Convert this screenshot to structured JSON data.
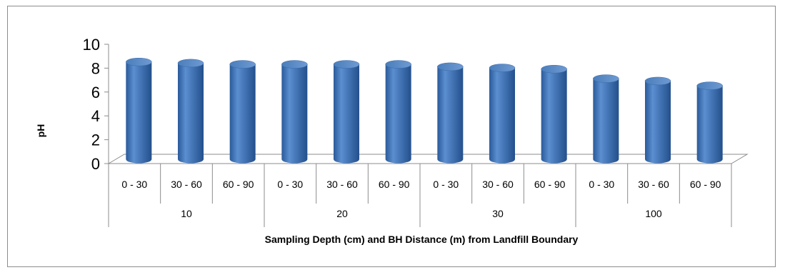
{
  "chart_data": {
    "type": "bar",
    "style": "3d-cylinder",
    "title": "",
    "xlabel": "Sampling Depth (cm) and BH Distance (m) from Landfill Boundary",
    "ylabel": "pH",
    "ylim": [
      0,
      10
    ],
    "yticks": [
      "0",
      "2",
      "4",
      "6",
      "8",
      "10"
    ],
    "groups": [
      "10",
      "20",
      "30",
      "100"
    ],
    "categories": [
      "0 - 30",
      "30 - 60",
      "60 - 90",
      "0 - 30",
      "30 - 60",
      "60 - 90",
      "0 - 30",
      "30 - 60",
      "60 - 90",
      "0 - 30",
      "30 - 60",
      "60 - 90"
    ],
    "values": [
      8.4,
      8.3,
      8.2,
      8.2,
      8.2,
      8.2,
      8.0,
      7.9,
      7.8,
      7.0,
      6.8,
      6.4
    ],
    "bar_color": "#4a7ebb",
    "grid": false,
    "legend": "none"
  }
}
